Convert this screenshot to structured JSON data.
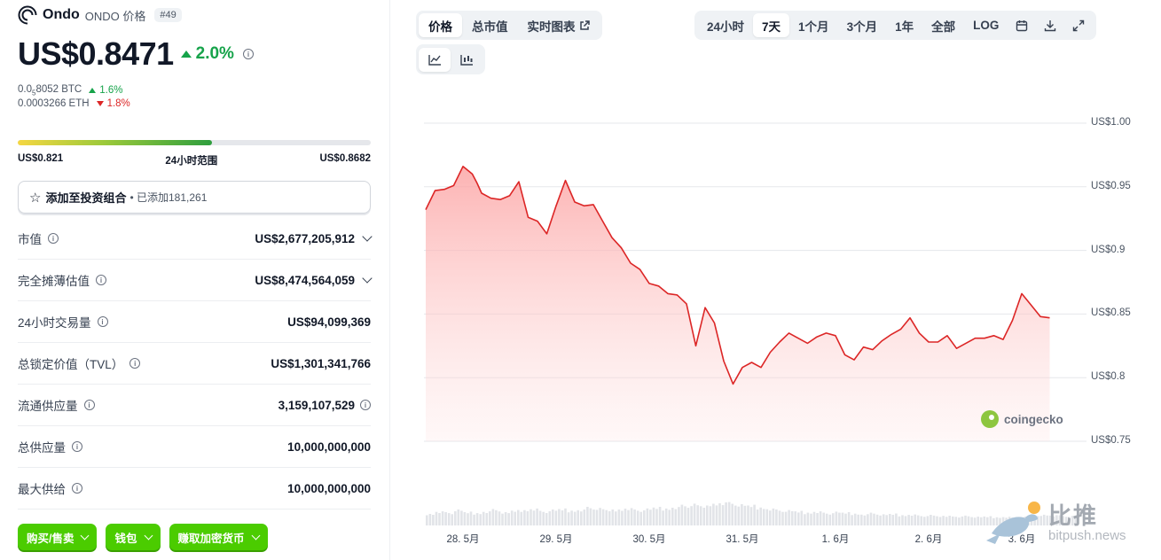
{
  "header": {
    "name": "Ondo",
    "symbol_label": "ONDO 价格",
    "rank": "#49"
  },
  "price": {
    "value": "US$0.8471",
    "change": "2.0%",
    "change_direction": "up"
  },
  "conversions": [
    {
      "value_prefix": "0.0",
      "value_sub": "5",
      "value_rest": "8052 BTC",
      "change": "1.6%",
      "direction": "up"
    },
    {
      "value": "0.0003266 ETH",
      "change": "1.8%",
      "direction": "down"
    }
  ],
  "range_24h": {
    "low": "US$0.821",
    "label": "24小时范围",
    "high": "US$0.8682",
    "position_fraction": 0.55
  },
  "watchlist": {
    "label": "添加至投资组合",
    "added": "• 已添加181,261"
  },
  "stats": [
    {
      "label": "市值",
      "value": "US$2,677,205,912",
      "trailing": "chevron"
    },
    {
      "label": "完全摊薄估值",
      "value": "US$8,474,564,059",
      "trailing": "chevron"
    },
    {
      "label": "24小时交易量",
      "value": "US$94,099,369",
      "trailing": ""
    },
    {
      "label": "总锁定价值（TVL）",
      "value": "US$1,301,341,766",
      "trailing": ""
    },
    {
      "label": "流通供应量",
      "value": "3,159,107,529",
      "trailing": "info"
    },
    {
      "label": "总供应量",
      "value": "10,000,000,000",
      "trailing": ""
    },
    {
      "label": "最大供给",
      "value": "10,000,000,000",
      "trailing": ""
    }
  ],
  "action_buttons": [
    "购买/售卖",
    "钱包",
    "赚取加密货币"
  ],
  "chart_tabs": [
    "价格",
    "总市值",
    "实时图表"
  ],
  "range_tabs": [
    "24小时",
    "7天",
    "1个月",
    "3个月",
    "1年",
    "全部",
    "LOG"
  ],
  "active_range": "7天",
  "icons": {
    "calendar": "calendar-icon",
    "download": "download-icon",
    "fullscreen": "fullscreen-icon",
    "line_chart": "line-chart-icon",
    "candle_chart": "candlestick-icon"
  },
  "colors": {
    "positive": "#16a34a",
    "negative": "#dc2626",
    "line": "#dc2626",
    "area_top": "#fca5a5",
    "button_green": "#4bcc00"
  },
  "watermarks": {
    "coingecko": "coingecko",
    "bitpush_cn": "比推",
    "bitpush_en": "bitpush.news"
  },
  "chart_data": {
    "type": "area",
    "title": "",
    "xlabel": "",
    "ylabel": "",
    "ylim": [
      0.75,
      1.0
    ],
    "y_ticks": [
      "US$1.00",
      "US$0.95",
      "US$0.9",
      "US$0.85",
      "US$0.8",
      "US$0.75"
    ],
    "y_tick_values": [
      1.0,
      0.95,
      0.9,
      0.85,
      0.8,
      0.75
    ],
    "x_ticks": [
      "28. 5月",
      "29. 5月",
      "30. 5月",
      "31. 5月",
      "1. 6月",
      "2. 6月",
      "3. 6月"
    ],
    "xlim": [
      0,
      7
    ],
    "x_tick_values": [
      0.4,
      1.4,
      2.4,
      3.4,
      4.4,
      5.4,
      6.4
    ],
    "series": [
      {
        "x": [
          0,
          0.1,
          0.2,
          0.3,
          0.4,
          0.5,
          0.55,
          0.6,
          0.7,
          0.8,
          0.9,
          1.0,
          1.1,
          1.2,
          1.3,
          1.4,
          1.5,
          1.6,
          1.7,
          1.8,
          1.9,
          2.0,
          2.1,
          2.2,
          2.3,
          2.4,
          2.5,
          2.6,
          2.7,
          2.8,
          2.9,
          3.0,
          3.1,
          3.2,
          3.3,
          3.4,
          3.5,
          3.6,
          3.7,
          3.8,
          3.9,
          4.0,
          4.1,
          4.2,
          4.3,
          4.4,
          4.5,
          4.6,
          4.7,
          4.8,
          4.9,
          5.0,
          5.1,
          5.2,
          5.3,
          5.4,
          5.5,
          5.6,
          5.7,
          5.8,
          5.9,
          6.0,
          6.1,
          6.2,
          6.3,
          6.4,
          6.5,
          6.6,
          6.7
        ],
        "y": [
          0.932,
          0.947,
          0.948,
          0.951,
          0.966,
          0.96,
          0.953,
          0.945,
          0.941,
          0.94,
          0.943,
          0.954,
          0.926,
          0.923,
          0.913,
          0.935,
          0.955,
          0.938,
          0.935,
          0.936,
          0.923,
          0.91,
          0.902,
          0.89,
          0.885,
          0.874,
          0.872,
          0.866,
          0.865,
          0.858,
          0.825,
          0.855,
          0.843,
          0.813,
          0.795,
          0.808,
          0.812,
          0.808,
          0.82,
          0.828,
          0.835,
          0.831,
          0.827,
          0.832,
          0.835,
          0.833,
          0.818,
          0.814,
          0.824,
          0.822,
          0.829,
          0.834,
          0.838,
          0.847,
          0.835,
          0.828,
          0.828,
          0.833,
          0.823,
          0.827,
          0.831,
          0.831,
          0.833,
          0.83,
          0.845,
          0.866,
          0.857,
          0.848,
          0.847
        ]
      }
    ],
    "volume_note": "volume bars (relative)",
    "volume": [
      0.45,
      0.55,
      0.5,
      0.6,
      0.52,
      0.48,
      0.55,
      0.62,
      0.5,
      0.58,
      0.6,
      0.66,
      0.55,
      0.6,
      0.64,
      0.58,
      0.62,
      0.7,
      0.66,
      0.6,
      0.62,
      0.68,
      0.6,
      0.64,
      0.7,
      0.66,
      0.72,
      0.78,
      0.82,
      0.75,
      0.85,
      0.9,
      0.88,
      0.8,
      0.78,
      0.7,
      0.66,
      0.6,
      0.58,
      0.55,
      0.5,
      0.55,
      0.48,
      0.52,
      0.5,
      0.46,
      0.44,
      0.48,
      0.42,
      0.45,
      0.4,
      0.43,
      0.38,
      0.4,
      0.36,
      0.38,
      0.35,
      0.37,
      0.33,
      0.35,
      0.32,
      0.34,
      0.3,
      0.33,
      0.35,
      0.42,
      0.4,
      0.38,
      0.36
    ]
  }
}
